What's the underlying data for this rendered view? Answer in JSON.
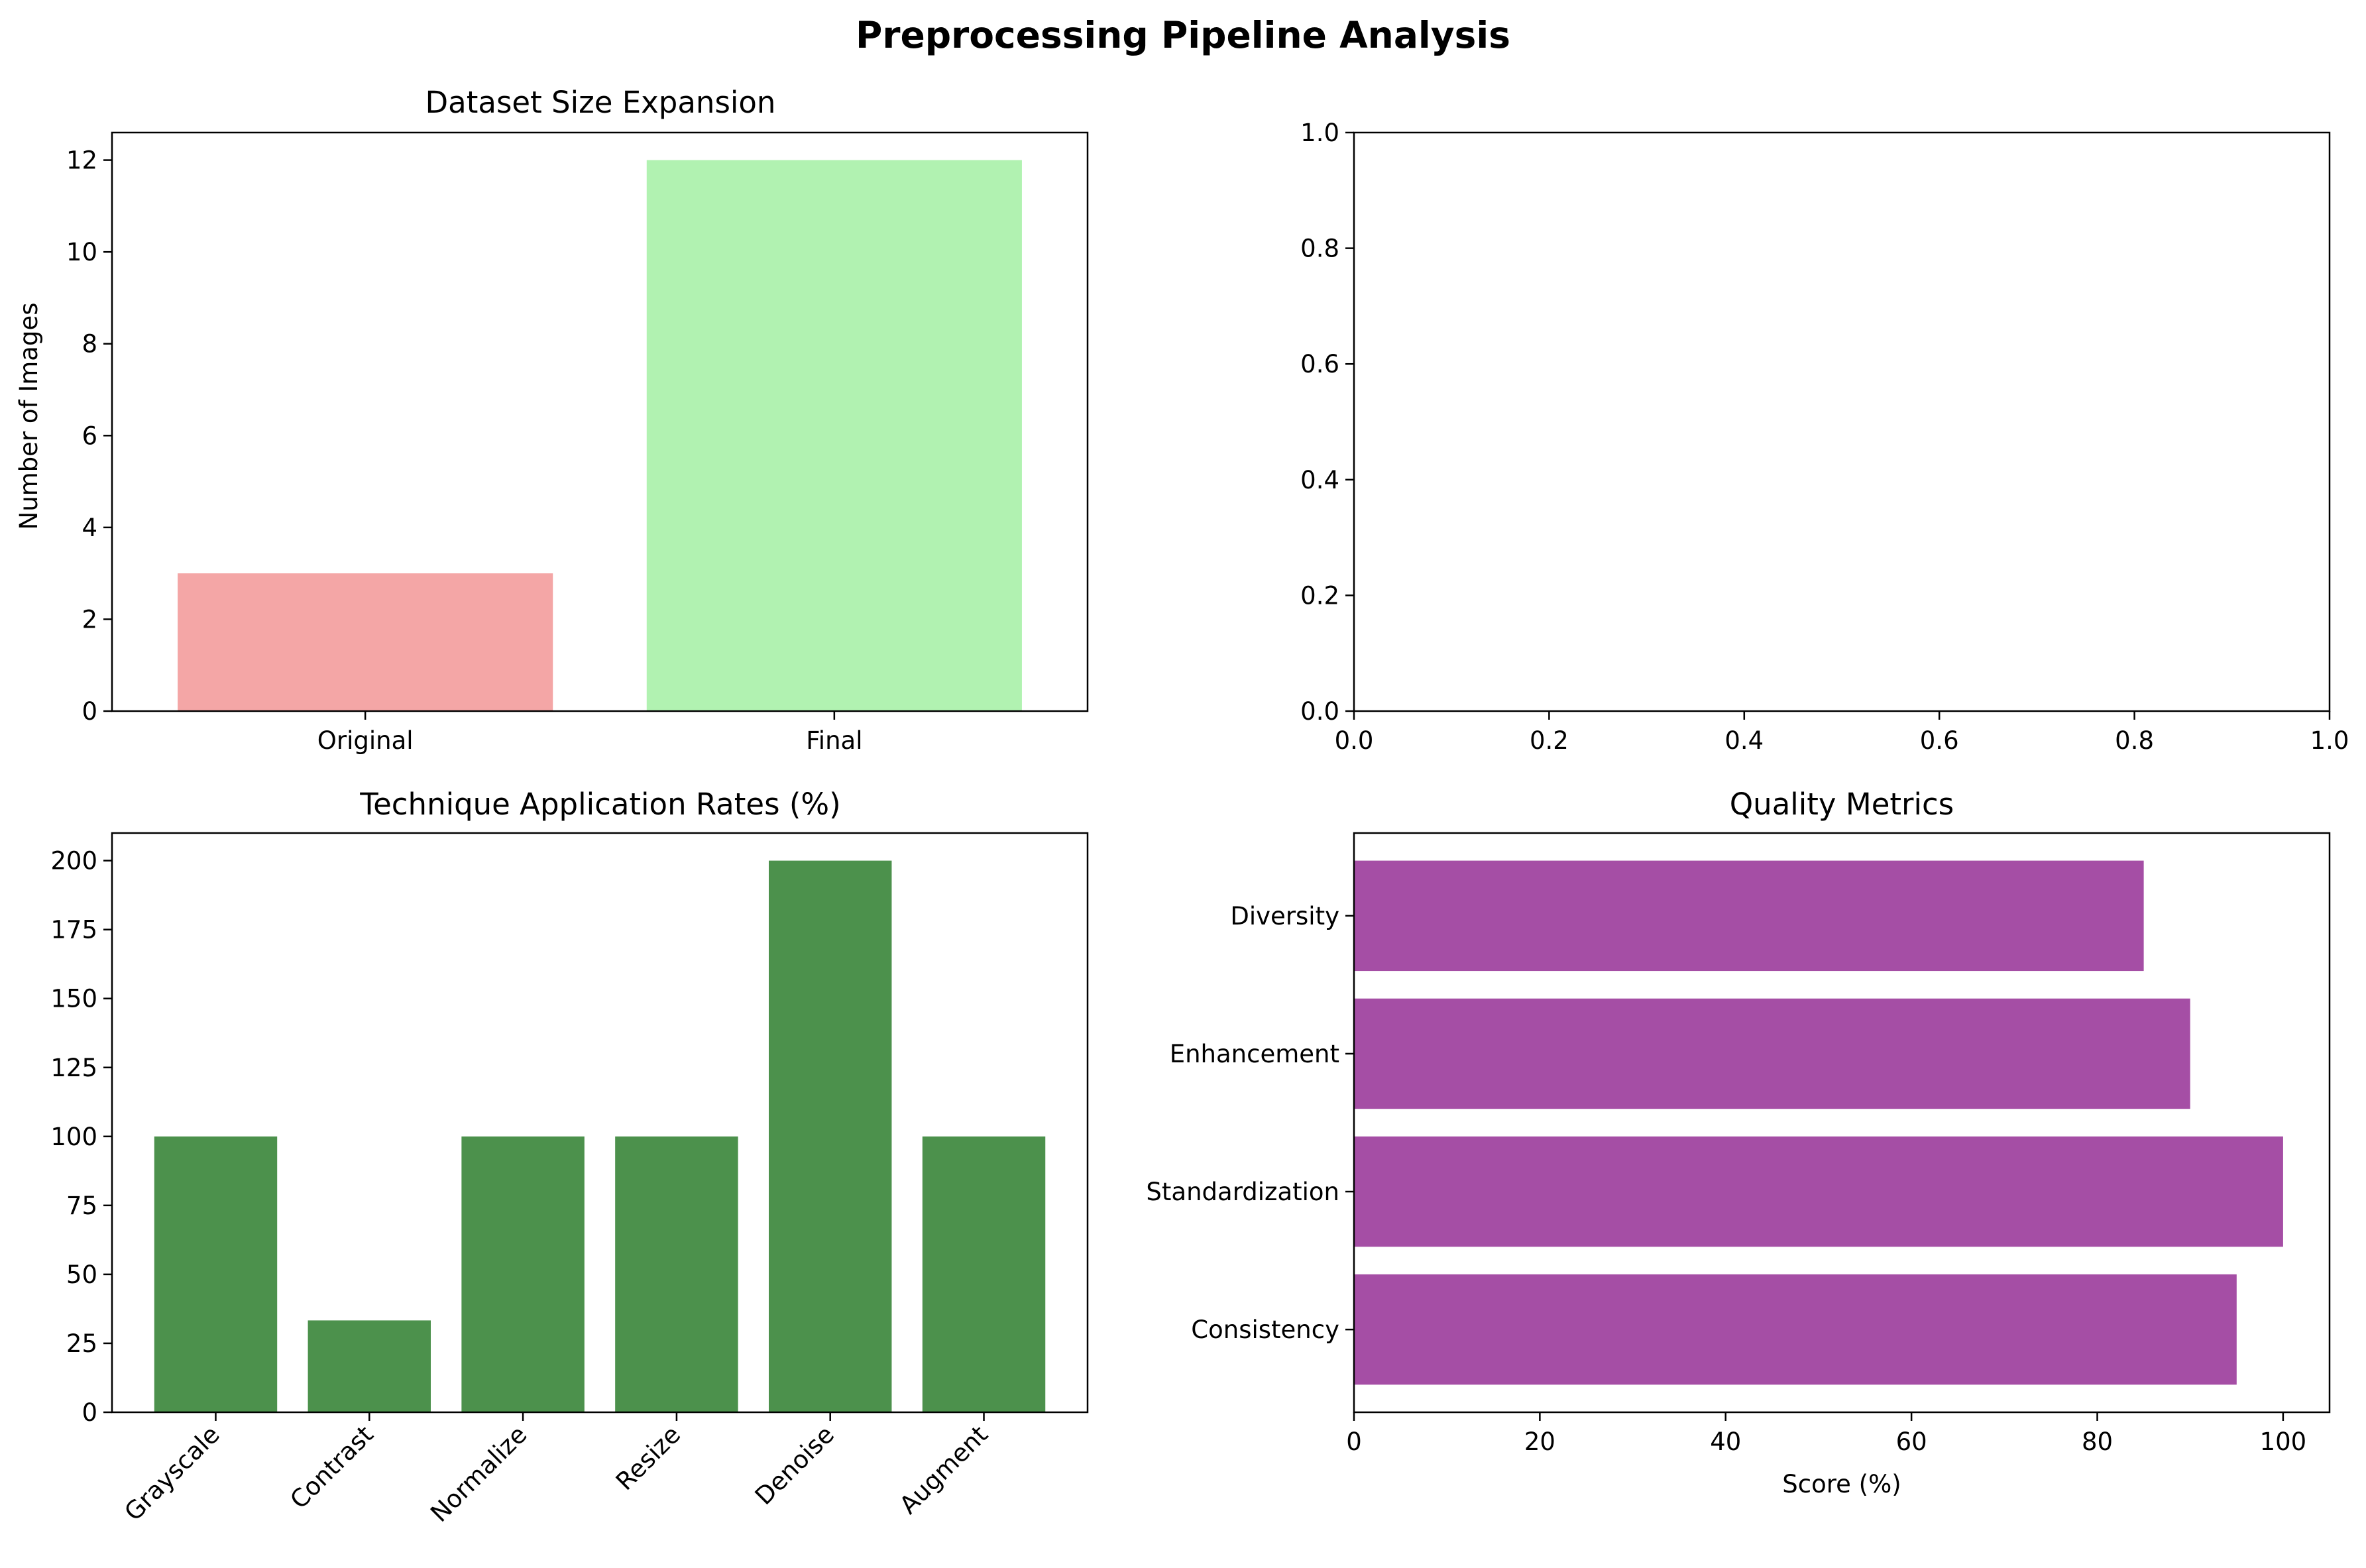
{
  "figure": {
    "title": "Preprocessing Pipeline Analysis"
  },
  "chart_data": [
    {
      "type": "bar",
      "title": "Dataset Size Expansion",
      "xlabel": "",
      "ylabel": "Number of Images",
      "categories": [
        "Original",
        "Final"
      ],
      "values": [
        3,
        12
      ],
      "colors": [
        "#f4a6a6",
        "#b1f2b1"
      ],
      "ylim": [
        0,
        12.6
      ],
      "yticks": [
        0,
        2,
        4,
        6,
        8,
        10,
        12
      ],
      "grid": false
    },
    {
      "type": "scatter",
      "title": "",
      "xlabel": "",
      "ylabel": "",
      "series": [],
      "xlim": [
        0,
        1
      ],
      "ylim": [
        0,
        1
      ],
      "xticks": [
        "0.0",
        "0.2",
        "0.4",
        "0.6",
        "0.8",
        "1.0"
      ],
      "yticks": [
        "0.0",
        "0.2",
        "0.4",
        "0.6",
        "0.8",
        "1.0"
      ],
      "grid": false
    },
    {
      "type": "bar",
      "title": "Technique Application Rates (%)",
      "xlabel": "",
      "ylabel": "",
      "categories": [
        "Grayscale",
        "Contrast",
        "Normalize",
        "Resize",
        "Denoise",
        "Augment"
      ],
      "values": [
        100,
        33.3,
        100,
        100,
        200,
        100
      ],
      "color": "#4c914c",
      "ylim": [
        0,
        210
      ],
      "yticks": [
        0,
        25,
        50,
        75,
        100,
        125,
        150,
        175,
        200
      ],
      "grid": false
    },
    {
      "type": "bar",
      "orientation": "horizontal",
      "title": "Quality Metrics",
      "xlabel": "Score (%)",
      "ylabel": "",
      "categories": [
        "Consistency",
        "Standardization",
        "Enhancement",
        "Diversity"
      ],
      "values": [
        95,
        100,
        90,
        85
      ],
      "color": "#a54ea5",
      "xlim": [
        0,
        105
      ],
      "xticks": [
        0,
        20,
        40,
        60,
        80,
        100
      ],
      "grid": false
    }
  ]
}
